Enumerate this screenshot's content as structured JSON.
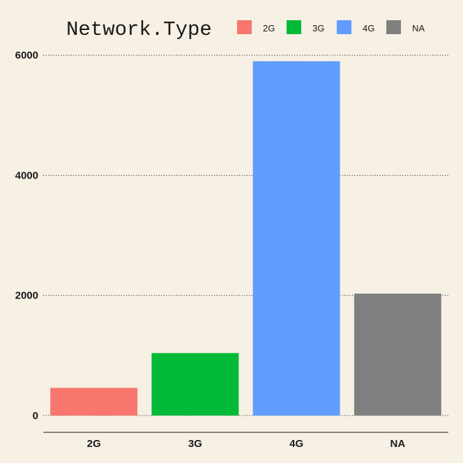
{
  "chart_data": {
    "type": "bar",
    "title": "",
    "xlabel": "",
    "ylabel": "",
    "categories": [
      "2G",
      "3G",
      "4G",
      "NA"
    ],
    "values": [
      460,
      1040,
      5900,
      2030
    ],
    "colors": [
      "#f8766d",
      "#00ba38",
      "#619cff",
      "#808080"
    ],
    "ylim": [
      -280,
      6200
    ],
    "yticks": [
      0,
      2000,
      4000,
      6000
    ],
    "ytick_labels": [
      "0",
      "2000",
      "4000",
      "6000"
    ],
    "grid": "horizontal dotted",
    "background": "#f7f0e4",
    "legend": {
      "position": "top",
      "title": "Network.Type",
      "entries": [
        "2G",
        "3G",
        "4G",
        "NA"
      ]
    }
  }
}
